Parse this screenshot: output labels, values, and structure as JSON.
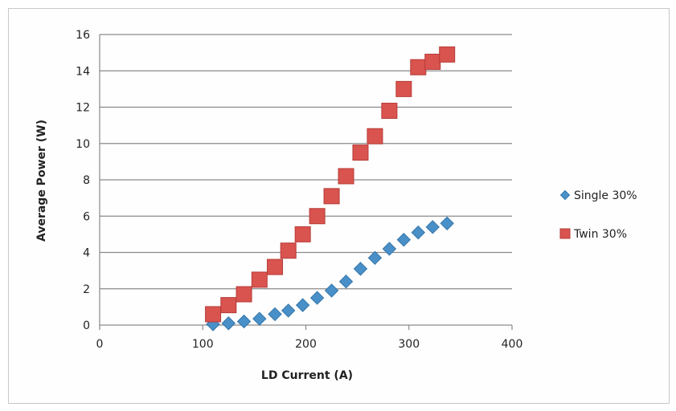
{
  "chart_data": {
    "type": "scatter",
    "xlabel": "LD Current (A)",
    "ylabel": "Average Power (W)",
    "xlim": [
      0,
      400
    ],
    "ylim": [
      0,
      16
    ],
    "x_ticks": [
      "0",
      "100",
      "200",
      "300",
      "400"
    ],
    "y_ticks": [
      "0",
      "2",
      "4",
      "6",
      "8",
      "10",
      "12",
      "14",
      "16"
    ],
    "grid": "horizontal",
    "legend_position": "right",
    "series": [
      {
        "name": "Single 30%",
        "marker": "diamond",
        "color": "#4a90c8",
        "x": [
          110,
          125,
          140,
          155,
          170,
          183,
          197,
          211,
          225,
          239,
          253,
          267,
          281,
          295,
          309,
          323,
          337
        ],
        "y": [
          0.05,
          0.1,
          0.2,
          0.35,
          0.6,
          0.8,
          1.1,
          1.5,
          1.9,
          2.4,
          3.1,
          3.7,
          4.2,
          4.7,
          5.1,
          5.4,
          5.6
        ]
      },
      {
        "name": "Twin 30%",
        "marker": "square",
        "color": "#d9534f",
        "x": [
          110,
          125,
          140,
          155,
          170,
          183,
          197,
          211,
          225,
          239,
          253,
          267,
          281,
          295,
          309,
          323,
          337
        ],
        "y": [
          0.6,
          1.1,
          1.7,
          2.5,
          3.2,
          4.1,
          5.0,
          6.0,
          7.1,
          8.2,
          9.5,
          10.4,
          11.8,
          13.0,
          14.2,
          14.5,
          14.9
        ]
      }
    ]
  }
}
